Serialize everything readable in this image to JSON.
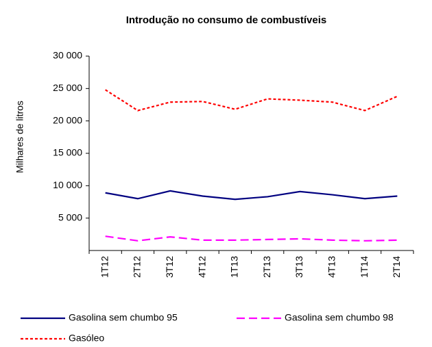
{
  "chart_data": {
    "type": "line",
    "title": "Introdução no consumo de combustíveis",
    "y_label": "Milhares de litros",
    "categories": [
      "1T12",
      "2T12",
      "3T12",
      "4T12",
      "1T13",
      "2T13",
      "3T13",
      "4T13",
      "1T14",
      "2T14"
    ],
    "series": [
      {
        "name": "Gasolina sem chumbo 95",
        "color": "#000080",
        "dash": "solid",
        "values": [
          8900,
          8000,
          9200,
          8400,
          7900,
          8300,
          9100,
          8600,
          8000,
          8400
        ]
      },
      {
        "name": "Gasolina sem chumbo 98",
        "color": "#ff00ff",
        "dash": "long",
        "values": [
          2200,
          1500,
          2100,
          1600,
          1600,
          1700,
          1800,
          1600,
          1500,
          1600
        ]
      },
      {
        "name": "Gasóleo",
        "color": "#ff0000",
        "dash": "short",
        "values": [
          24800,
          21600,
          22900,
          23000,
          21800,
          23400,
          23200,
          22900,
          21600,
          23800
        ]
      }
    ],
    "ylim": [
      0,
      30000
    ],
    "yticks": [
      {
        "value": 5000,
        "label": "5 000"
      },
      {
        "value": 10000,
        "label": "10 000"
      },
      {
        "value": 15000,
        "label": "15 000"
      },
      {
        "value": 20000,
        "label": "20 000"
      },
      {
        "value": 25000,
        "label": "25 000"
      },
      {
        "value": 30000,
        "label": "30 000"
      }
    ],
    "grid": false,
    "legend": "bottom"
  }
}
